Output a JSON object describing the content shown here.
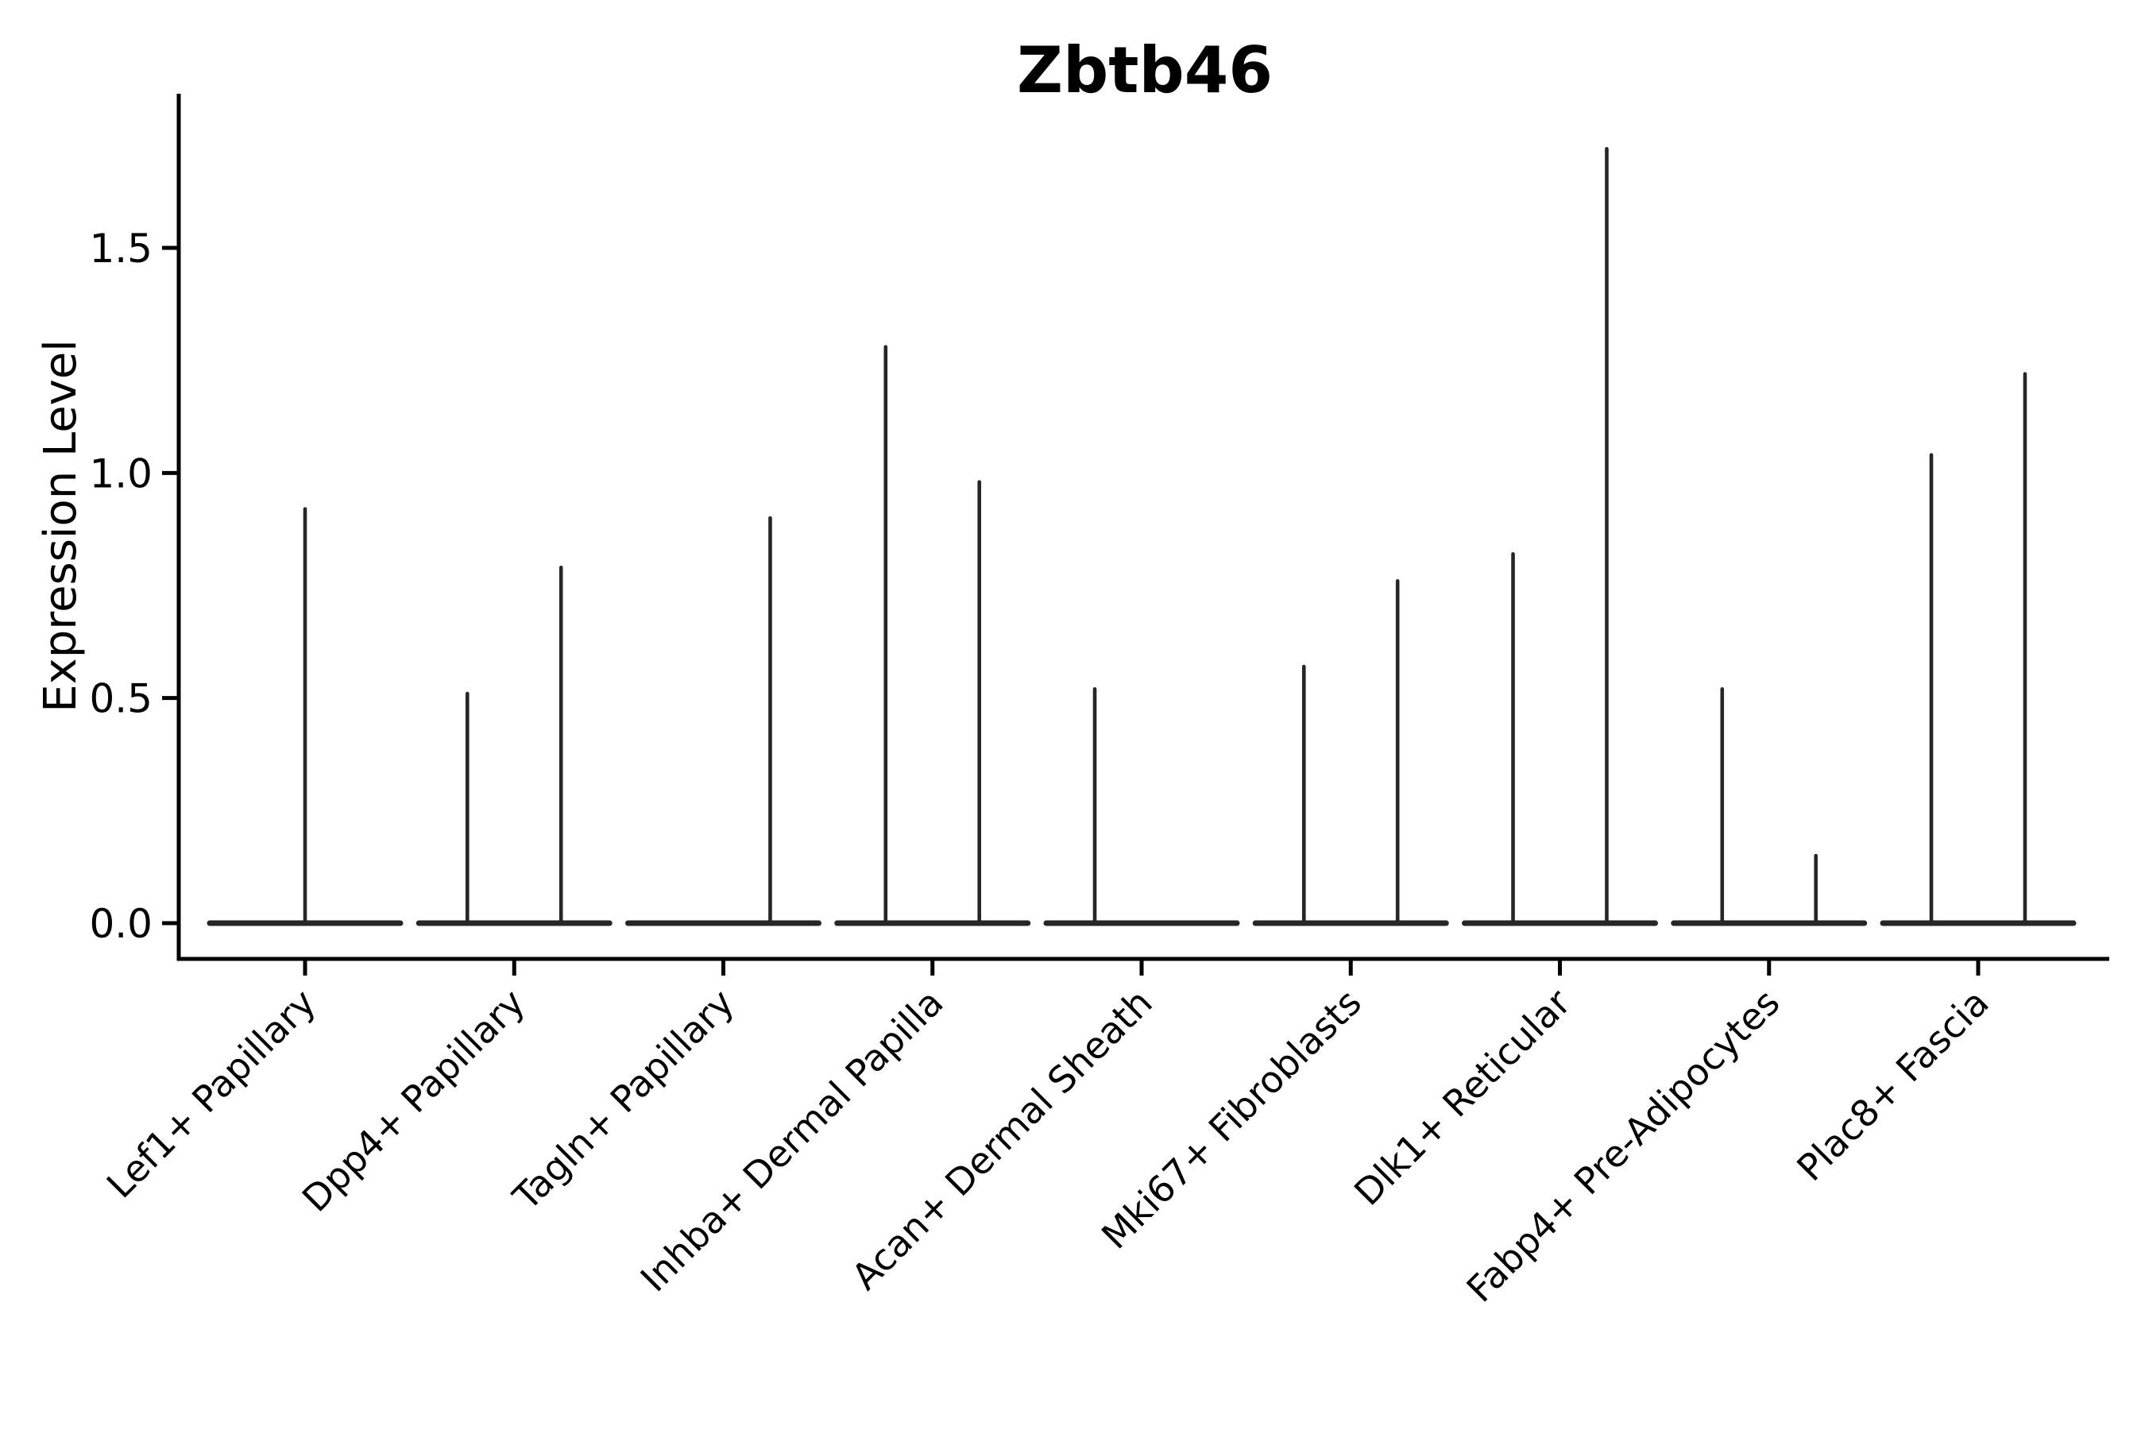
{
  "page": {
    "background": "#ffffff"
  },
  "chart_data": {
    "type": "violin",
    "title": "Zbtb46",
    "ylabel": "Expression Level",
    "xlabel": "",
    "ylim": [
      -0.08,
      1.84
    ],
    "yticks": [
      0.0,
      0.5,
      1.0,
      1.5
    ],
    "ytick_labels": [
      "0.0",
      "0.5",
      "1.0",
      "1.5"
    ],
    "grid": false,
    "legend": false,
    "baseline_value": 0.0,
    "violin_color": "#262626",
    "axis_color": "#000000",
    "categories": [
      "Lef1+ Papillary",
      "Dpp4+ Papillary",
      "Tagln+ Papillary",
      "Inhba+ Dermal Papilla",
      "Acan+ Dermal Sheath",
      "Mki67+ Fibroblasts",
      "Dlk1+ Reticular",
      "Fabp4+ Pre-Adipocytes",
      "Plac8+ Fascia"
    ],
    "series": [
      {
        "name": "Lef1+ Papillary",
        "spikes": [
          {
            "pos": 0.0,
            "max": 0.92
          }
        ]
      },
      {
        "name": "Dpp4+ Papillary",
        "spikes": [
          {
            "pos": -0.224,
            "max": 0.51
          },
          {
            "pos": 0.224,
            "max": 0.79
          }
        ]
      },
      {
        "name": "Tagln+ Papillary",
        "spikes": [
          {
            "pos": 0.224,
            "max": 0.9
          }
        ]
      },
      {
        "name": "Inhba+ Dermal Papilla",
        "spikes": [
          {
            "pos": -0.224,
            "max": 1.28
          },
          {
            "pos": 0.224,
            "max": 0.98
          }
        ]
      },
      {
        "name": "Acan+ Dermal Sheath",
        "spikes": [
          {
            "pos": -0.224,
            "max": 0.52
          }
        ]
      },
      {
        "name": "Mki67+ Fibroblasts",
        "spikes": [
          {
            "pos": -0.224,
            "max": 0.57
          },
          {
            "pos": 0.224,
            "max": 0.76
          }
        ]
      },
      {
        "name": "Dlk1+ Reticular",
        "spikes": [
          {
            "pos": -0.224,
            "max": 0.82
          },
          {
            "pos": 0.224,
            "max": 1.72
          }
        ]
      },
      {
        "name": "Fabp4+ Pre-Adipocytes",
        "spikes": [
          {
            "pos": -0.224,
            "max": 0.52
          },
          {
            "pos": 0.224,
            "max": 0.15
          }
        ]
      },
      {
        "name": "Plac8+ Fascia",
        "spikes": [
          {
            "pos": -0.224,
            "max": 1.04
          },
          {
            "pos": 0.224,
            "max": 1.22
          }
        ]
      }
    ]
  }
}
